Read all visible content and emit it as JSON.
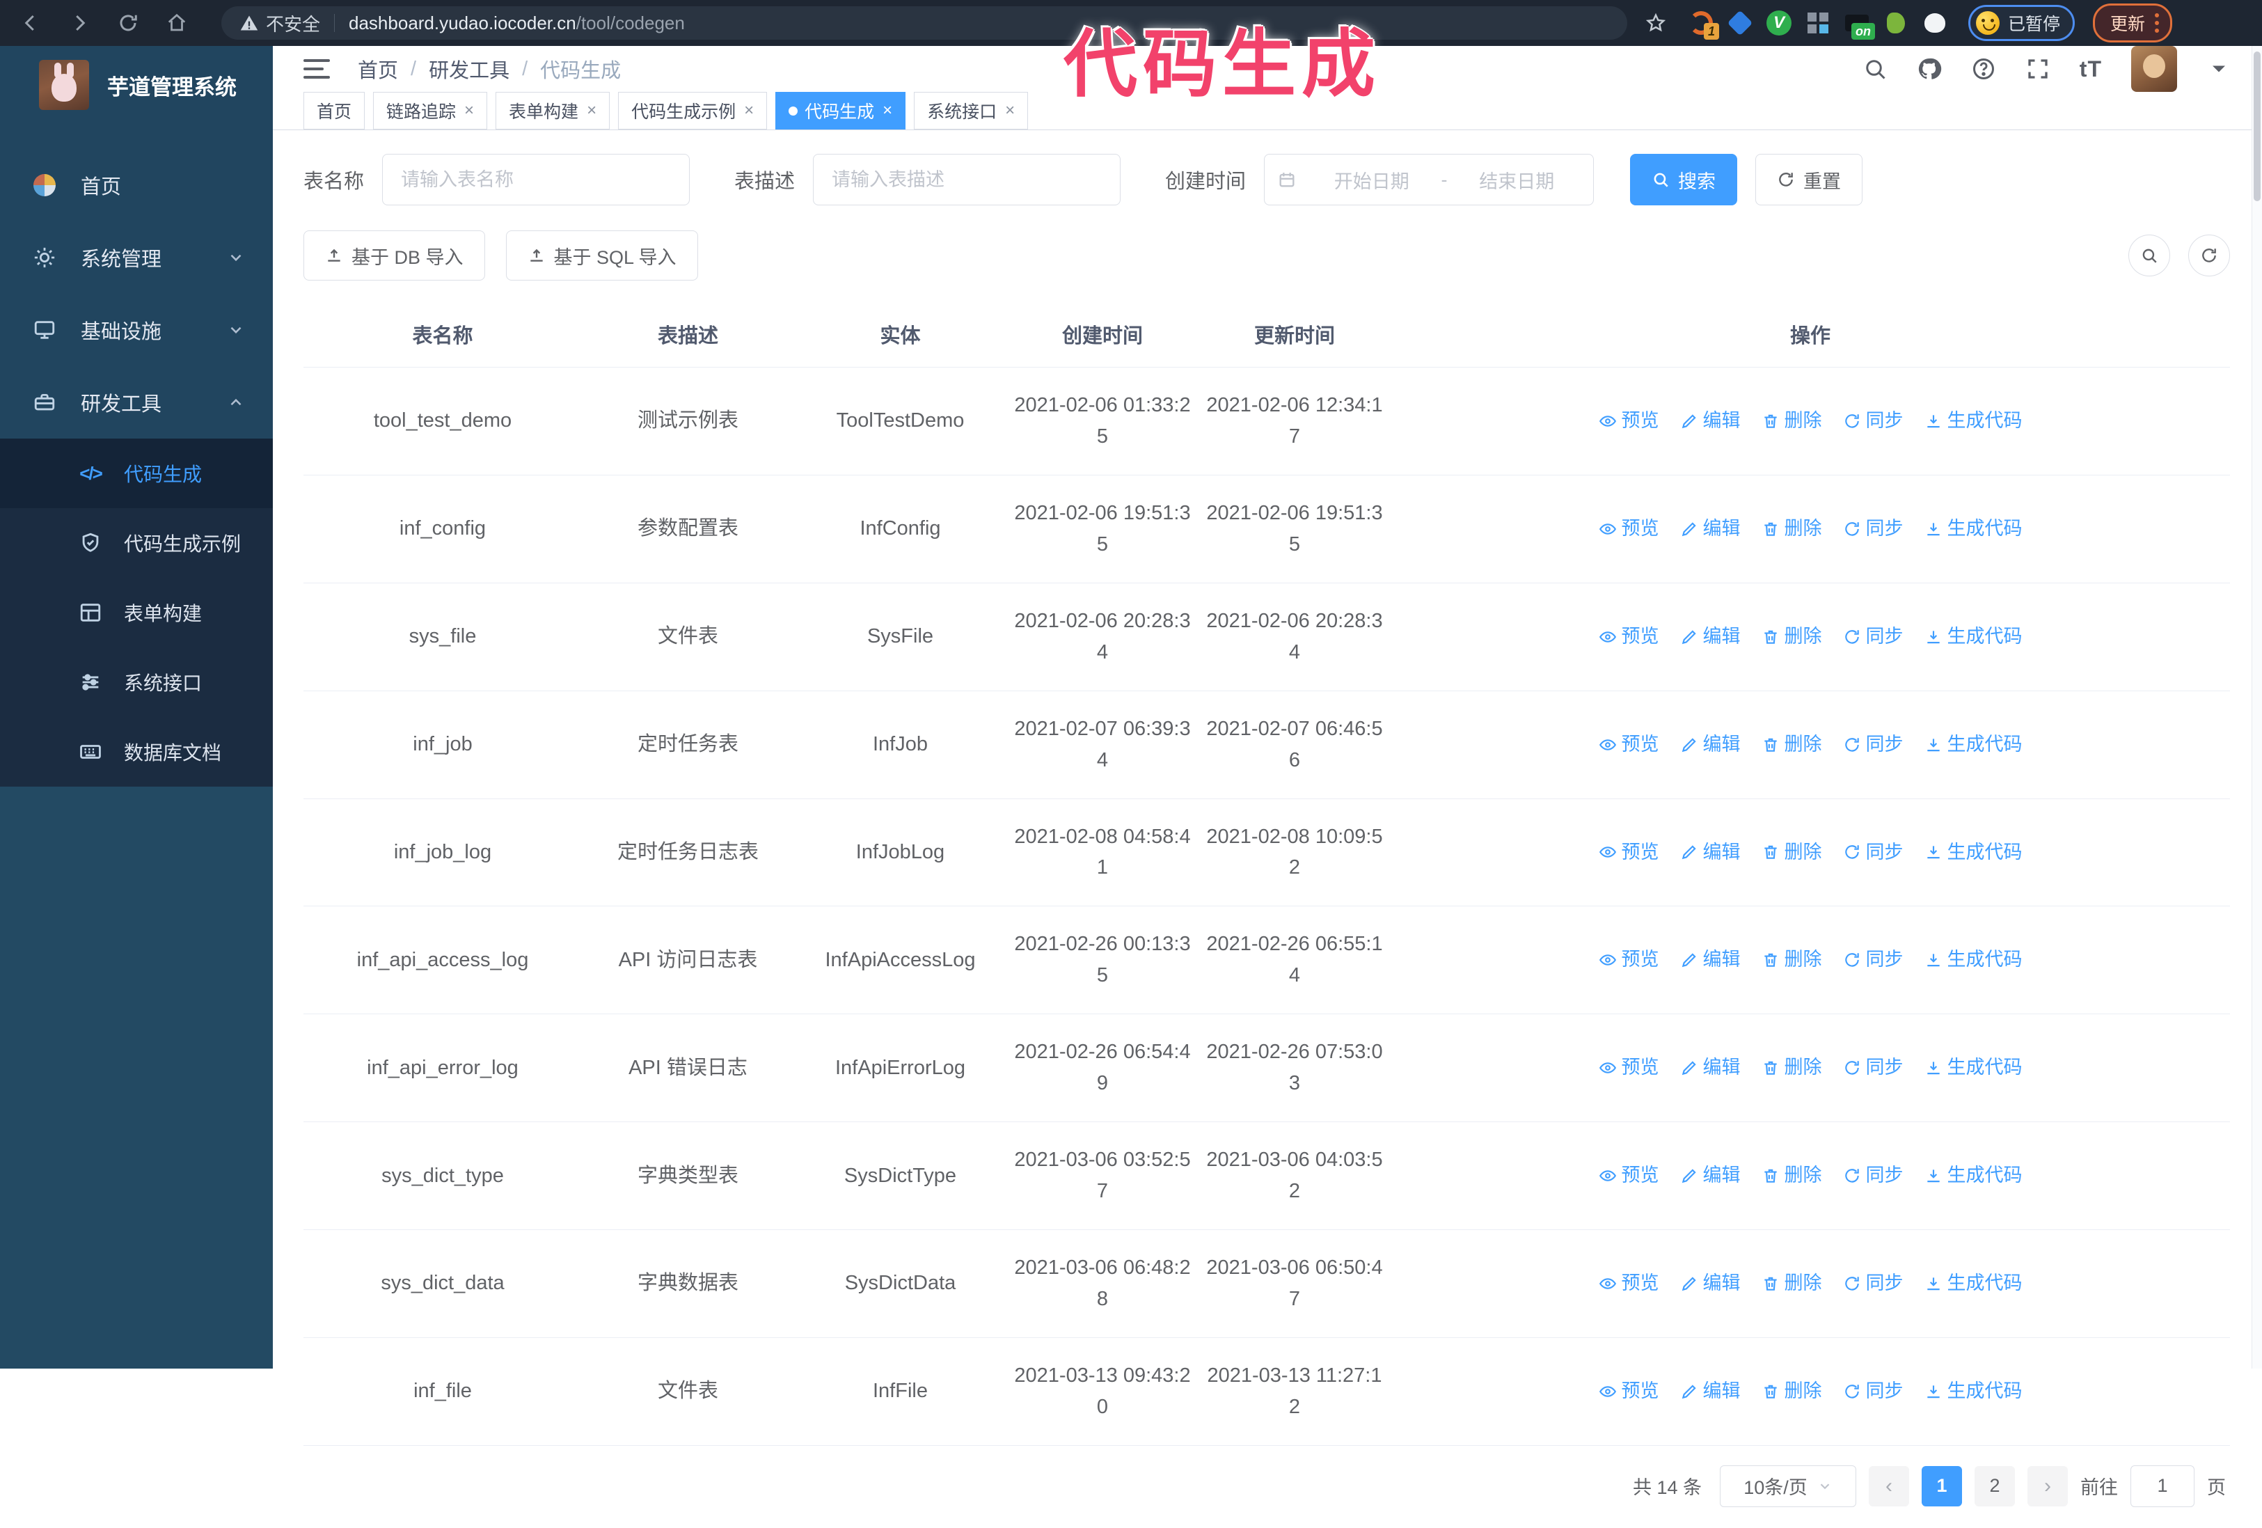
{
  "colors": {
    "accent": "#409eff",
    "annotation_pink": "#f2426b",
    "sidebar_bg": "#21455f",
    "submenu_bg": "#1b2c41"
  },
  "annotation": {
    "text": "代码生成"
  },
  "browser": {
    "security_label": "不安全",
    "url_host": "dashboard.yudao.iocoder.cn",
    "url_path": "/tool/codegen",
    "extension_badge_count": "1",
    "extension_badge_on": "on",
    "profile_paused_label": "已暂停",
    "update_button_label": "更新"
  },
  "app": {
    "title": "芋道管理系统"
  },
  "breadcrumb": {
    "separator": "/",
    "items": [
      "首页",
      "研发工具",
      "代码生成"
    ]
  },
  "sidebar": {
    "items": [
      {
        "key": "home",
        "icon": "dashboard",
        "label": "首页"
      },
      {
        "key": "system-manage",
        "icon": "gear",
        "label": "系统管理",
        "chevron": "down"
      },
      {
        "key": "infrastructure",
        "icon": "infrastructure",
        "label": "基础设施",
        "chevron": "down"
      },
      {
        "key": "dev-tools",
        "icon": "toolbox",
        "label": "研发工具",
        "chevron": "up",
        "children": [
          {
            "key": "codegen",
            "icon": "code",
            "label": "代码生成",
            "active": true
          },
          {
            "key": "codegen-example",
            "icon": "shield-check",
            "label": "代码生成示例"
          },
          {
            "key": "form-builder",
            "icon": "form-grid",
            "label": "表单构建"
          },
          {
            "key": "system-api",
            "icon": "sliders",
            "label": "系统接口"
          },
          {
            "key": "db-doc",
            "icon": "keyboard-grid",
            "label": "数据库文档"
          }
        ]
      }
    ]
  },
  "tags": {
    "items": [
      {
        "label": "首页",
        "closable": false,
        "active": false
      },
      {
        "label": "链路追踪",
        "closable": true,
        "active": false
      },
      {
        "label": "表单构建",
        "closable": true,
        "active": false
      },
      {
        "label": "代码生成示例",
        "closable": true,
        "active": false
      },
      {
        "label": "代码生成",
        "closable": true,
        "active": true
      },
      {
        "label": "系统接口",
        "closable": true,
        "active": false
      }
    ]
  },
  "search": {
    "name_label": "表名称",
    "name_placeholder": "请输入表名称",
    "desc_label": "表描述",
    "desc_placeholder": "请输入表描述",
    "time_label": "创建时间",
    "start_placeholder": "开始日期",
    "range_separator": "-",
    "end_placeholder": "结束日期",
    "search_button": "搜索",
    "reset_button": "重置"
  },
  "import_bar": {
    "db_button": "基于 DB 导入",
    "sql_button": "基于 SQL 导入"
  },
  "table": {
    "columns": [
      "表名称",
      "表描述",
      "实体",
      "创建时间",
      "更新时间",
      "操作"
    ],
    "action_labels": [
      "预览",
      "编辑",
      "删除",
      "同步",
      "生成代码"
    ],
    "rows": [
      {
        "name": "tool_test_demo",
        "description": "测试示例表",
        "entity": "ToolTestDemo",
        "create_time": "2021-02-06 01:33:25",
        "update_time": "2021-02-06 12:34:17"
      },
      {
        "name": "inf_config",
        "description": "参数配置表",
        "entity": "InfConfig",
        "create_time": "2021-02-06 19:51:35",
        "update_time": "2021-02-06 19:51:35"
      },
      {
        "name": "sys_file",
        "description": "文件表",
        "entity": "SysFile",
        "create_time": "2021-02-06 20:28:34",
        "update_time": "2021-02-06 20:28:34"
      },
      {
        "name": "inf_job",
        "description": "定时任务表",
        "entity": "InfJob",
        "create_time": "2021-02-07 06:39:34",
        "update_time": "2021-02-07 06:46:56"
      },
      {
        "name": "inf_job_log",
        "description": "定时任务日志表",
        "entity": "InfJobLog",
        "create_time": "2021-02-08 04:58:41",
        "update_time": "2021-02-08 10:09:52"
      },
      {
        "name": "inf_api_access_log",
        "description": "API 访问日志表",
        "entity": "InfApiAccessLog",
        "create_time": "2021-02-26 00:13:35",
        "update_time": "2021-02-26 06:55:14"
      },
      {
        "name": "inf_api_error_log",
        "description": "API 错误日志",
        "entity": "InfApiErrorLog",
        "create_time": "2021-02-26 06:54:49",
        "update_time": "2021-02-26 07:53:03"
      },
      {
        "name": "sys_dict_type",
        "description": "字典类型表",
        "entity": "SysDictType",
        "create_time": "2021-03-06 03:52:57",
        "update_time": "2021-03-06 04:03:52"
      },
      {
        "name": "sys_dict_data",
        "description": "字典数据表",
        "entity": "SysDictData",
        "create_time": "2021-03-06 06:48:28",
        "update_time": "2021-03-06 06:50:47"
      },
      {
        "name": "inf_file",
        "description": "文件表",
        "entity": "InfFile",
        "create_time": "2021-03-13 09:43:20",
        "update_time": "2021-03-13 11:27:12"
      }
    ]
  },
  "pagination": {
    "total_label": "共 14 条",
    "page_size_label": "10条/页",
    "pages": [
      "1",
      "2"
    ],
    "active_page": "1",
    "goto_label": "前往",
    "goto_value": "1",
    "goto_unit": "页"
  }
}
